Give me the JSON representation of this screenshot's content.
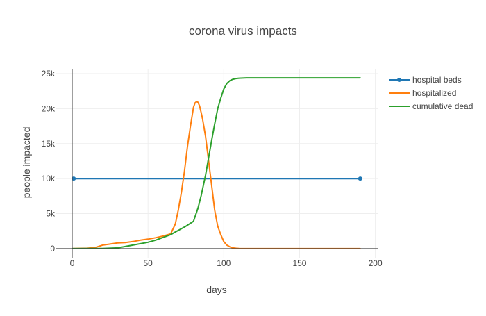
{
  "chart_data": {
    "type": "line",
    "title": "corona virus impacts",
    "xlabel": "days",
    "ylabel": "people impacted",
    "xlim": [
      -11,
      202
    ],
    "ylim": [
      -1300,
      25600
    ],
    "x_ticks": [
      0,
      50,
      100,
      150,
      200
    ],
    "x_tick_labels": [
      "0",
      "50",
      "100",
      "150",
      "200"
    ],
    "y_ticks": [
      0,
      5000,
      10000,
      15000,
      20000,
      25000
    ],
    "y_tick_labels": [
      "0",
      "5k",
      "10k",
      "15k",
      "20k",
      "25k"
    ],
    "grid": true,
    "legend": "right",
    "series": [
      {
        "name": "hospital beds",
        "color": "#1f77b4",
        "markers": true,
        "x": [
          1,
          190
        ],
        "y": [
          10000,
          10000
        ]
      },
      {
        "name": "hospitalized",
        "color": "#ff7f0e",
        "markers": false,
        "x": [
          0,
          10,
          15,
          20,
          25,
          30,
          35,
          40,
          45,
          50,
          55,
          60,
          65,
          68,
          70,
          72,
          74,
          76,
          78,
          80,
          81,
          82,
          83,
          84,
          85,
          86,
          88,
          90,
          92,
          94,
          96,
          98,
          100,
          102,
          104,
          106,
          108,
          110,
          115,
          120,
          130,
          150,
          170,
          190
        ],
        "y": [
          0,
          50,
          150,
          500,
          650,
          800,
          850,
          1000,
          1200,
          1350,
          1550,
          1800,
          2100,
          3500,
          5500,
          8000,
          11000,
          14500,
          17500,
          20200,
          20800,
          21000,
          20900,
          20400,
          19500,
          18500,
          16000,
          12500,
          9000,
          5500,
          3200,
          2000,
          1000,
          500,
          250,
          100,
          50,
          20,
          0,
          0,
          0,
          0,
          0,
          0
        ]
      },
      {
        "name": "cumulative dead",
        "color": "#2ca02c",
        "markers": false,
        "x": [
          0,
          20,
          30,
          40,
          50,
          55,
          60,
          65,
          70,
          75,
          80,
          83,
          85,
          88,
          90,
          92,
          94,
          96,
          98,
          100,
          102,
          104,
          106,
          108,
          110,
          115,
          120,
          130,
          150,
          170,
          190
        ],
        "y": [
          0,
          20,
          100,
          500,
          900,
          1200,
          1600,
          2000,
          2600,
          3200,
          3900,
          5800,
          7500,
          10500,
          13000,
          15500,
          17800,
          20000,
          21500,
          22800,
          23600,
          24000,
          24200,
          24300,
          24350,
          24400,
          24400,
          24400,
          24400,
          24400,
          24400
        ]
      }
    ]
  }
}
